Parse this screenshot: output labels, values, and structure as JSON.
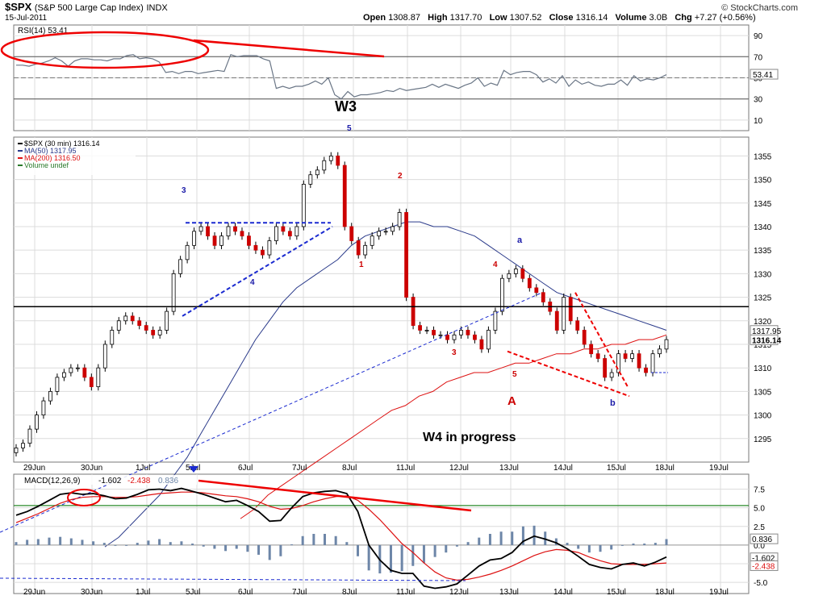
{
  "header": {
    "symbol": "$SPX",
    "name": "(S&P 500 Large Cap Index)",
    "exchange": "INDX",
    "date": "15-Jul-2011",
    "open_label": "Open",
    "open": "1308.87",
    "high_label": "High",
    "high": "1317.70",
    "low_label": "Low",
    "low": "1307.52",
    "close_label": "Close",
    "close": "1316.14",
    "volume_label": "Volume",
    "volume": "3.0B",
    "chg_label": "Chg",
    "chg": "+7.27 (+0.56%)",
    "watermark": "© StockCharts.com"
  },
  "chart_data": [
    {
      "type": "line",
      "panel": "rsi",
      "label": "RSI(14) 53.41",
      "y_ticks": [
        "90",
        "70",
        "50",
        "30",
        "10"
      ],
      "ylim": [
        0,
        100
      ],
      "last_value_label": "53.41",
      "values": [
        62,
        62,
        61,
        63,
        64,
        66,
        69,
        66,
        61,
        66,
        68,
        68,
        67,
        67,
        66,
        68,
        68,
        71,
        72,
        68,
        69,
        68,
        65,
        55,
        56,
        54,
        56,
        56,
        54,
        55,
        56,
        57,
        56,
        72,
        70,
        71,
        71,
        71,
        68,
        66,
        40,
        42,
        40,
        42,
        42,
        44,
        47,
        44,
        50,
        34,
        30,
        37,
        32,
        34,
        34,
        35,
        36,
        38,
        37,
        40,
        38,
        39,
        40,
        41,
        44,
        41,
        44,
        42,
        40,
        43,
        45,
        50,
        42,
        45,
        43,
        57,
        53,
        55,
        56,
        56,
        53,
        46,
        49,
        45,
        52,
        42,
        48,
        44,
        46,
        43,
        42,
        44,
        44,
        48,
        43,
        52,
        47,
        49,
        48,
        50,
        53
      ]
    },
    {
      "type": "line",
      "panel": "price",
      "legend": [
        "$SPX (30 min) 1316.14",
        "MA(50) 1317.95",
        "MA(200) 1316.50",
        "Volume undef"
      ],
      "y_ticks": [
        "1355",
        "1350",
        "1345",
        "1340",
        "1335",
        "1330",
        "1325",
        "1320",
        "1315",
        "1310",
        "1305",
        "1300",
        "1295"
      ],
      "ylim": [
        1290,
        1359
      ],
      "x_labels": [
        "29Jun",
        "30Jun",
        "1Jul",
        "5Jul",
        "6Jul",
        "7Jul",
        "8Jul",
        "11Jul",
        "12Jul",
        "13Jul",
        "14Jul",
        "15Jul",
        "18Jul",
        "19Jul"
      ],
      "price_labels": [
        "1317.95",
        "1316.14"
      ],
      "close": [
        1293,
        1294,
        1297,
        1300,
        1303,
        1305,
        1308,
        1309,
        1310,
        1310,
        1308,
        1306,
        1310,
        1315,
        1318,
        1320,
        1321,
        1320,
        1319,
        1318,
        1317,
        1318,
        1322,
        1330,
        1333,
        1336,
        1339,
        1340,
        1338,
        1336,
        1338,
        1340,
        1339,
        1338,
        1336,
        1335,
        1334,
        1337,
        1340,
        1339,
        1338,
        1340,
        1349,
        1351,
        1352,
        1354,
        1355,
        1353,
        1340,
        1337,
        1334,
        1336,
        1338,
        1339,
        1339,
        1340,
        1343,
        1325,
        1319,
        1318,
        1318,
        1317,
        1317,
        1316,
        1317,
        1318,
        1317,
        1316,
        1314,
        1318,
        1322,
        1329,
        1330,
        1331,
        1329,
        1327,
        1326,
        1324,
        1322,
        1318,
        1325,
        1320,
        1318,
        1315,
        1313,
        1312,
        1308,
        1309,
        1313,
        1312,
        1313,
        1310,
        1309,
        1313,
        1314,
        1316
      ],
      "ma50": [
        1272,
        1274,
        1277,
        1280,
        1283,
        1287,
        1291,
        1296,
        1301,
        1306,
        1311,
        1316,
        1320,
        1324,
        1327,
        1329,
        1331,
        1333,
        1336,
        1338,
        1339,
        1340,
        1341,
        1341,
        1340,
        1340,
        1339,
        1338,
        1336,
        1334,
        1332,
        1330,
        1328,
        1326,
        1325,
        1324,
        1323,
        1322,
        1321,
        1320,
        1319,
        1318
      ],
      "ma200": [
        1278,
        1280,
        1283,
        1285,
        1287,
        1289,
        1291,
        1293,
        1295,
        1297,
        1299,
        1301,
        1302,
        1304,
        1305,
        1307,
        1308,
        1309,
        1309,
        1310,
        1311,
        1311,
        1312,
        1313,
        1313,
        1314,
        1314,
        1315,
        1315,
        1316,
        1316,
        1317
      ],
      "annotations": [
        {
          "text": "W3",
          "color": "#000000",
          "size": 18
        },
        {
          "text": "W4 in progress",
          "color": "#000000",
          "size": 16
        },
        {
          "text": "5",
          "color": "#1a1aa8"
        },
        {
          "text": "3",
          "color": "#1a1aa8"
        },
        {
          "text": "4",
          "color": "#1a1aa8"
        },
        {
          "text": "a",
          "color": "#1a1aa8"
        },
        {
          "text": "b",
          "color": "#1a1aa8"
        },
        {
          "text": "1",
          "color": "#cc0000"
        },
        {
          "text": "2",
          "color": "#cc0000"
        },
        {
          "text": "3",
          "color": "#cc0000"
        },
        {
          "text": "4",
          "color": "#cc0000"
        },
        {
          "text": "5",
          "color": "#cc0000"
        },
        {
          "text": "A",
          "color": "#cc0000",
          "size": 15
        }
      ]
    },
    {
      "type": "line",
      "panel": "macd",
      "label_prefix": "MACD(12,26,9)",
      "label_macd": "-1.602",
      "label_signal": "-2.438",
      "label_hist": "0.836",
      "y_ticks": [
        "7.5",
        "5.0",
        "2.5",
        "0.0",
        "-2.5",
        "-5.0"
      ],
      "ylim": [
        -6.5,
        9.5
      ],
      "price_labels": [
        "0.836",
        "-1.602",
        "-2.438"
      ],
      "x_labels": [
        "29Jun",
        "30Jun",
        "1Jul",
        "5Jul",
        "6Jul",
        "7Jul",
        "8Jul",
        "11Jul",
        "12Jul",
        "13Jul",
        "14Jul",
        "15Jul",
        "18Jul",
        "19Jul"
      ],
      "macd": [
        4.0,
        4.5,
        5.2,
        6.0,
        6.8,
        7.0,
        6.8,
        6.9,
        6.6,
        6.2,
        6.3,
        6.8,
        7.4,
        7.5,
        7.3,
        7.6,
        7.2,
        6.8,
        6.3,
        5.8,
        6.0,
        5.3,
        4.5,
        3.2,
        3.3,
        5.0,
        6.5,
        7.0,
        7.2,
        7.3,
        6.9,
        4.5,
        0.0,
        -2.0,
        -3.4,
        -3.8,
        -3.8,
        -5.5,
        -5.8,
        -5.6,
        -5.2,
        -4.0,
        -2.8,
        -2.0,
        -1.8,
        -1.0,
        0.5,
        1.2,
        0.8,
        0.3,
        -0.5,
        -1.5,
        -2.6,
        -3.0,
        -3.2,
        -2.6,
        -2.4,
        -2.8,
        -2.3,
        -1.6
      ],
      "signal": [
        3.0,
        3.6,
        4.2,
        4.9,
        5.6,
        6.1,
        6.4,
        6.5,
        6.5,
        6.4,
        6.4,
        6.5,
        6.7,
        6.9,
        7.0,
        7.1,
        7.1,
        7.0,
        6.8,
        6.6,
        6.5,
        6.2,
        5.8,
        5.2,
        4.8,
        4.9,
        5.3,
        5.8,
        6.2,
        6.5,
        6.6,
        6.0,
        4.8,
        3.4,
        1.8,
        0.2,
        -1.0,
        -2.4,
        -3.6,
        -4.4,
        -4.7,
        -4.6,
        -4.3,
        -3.9,
        -3.4,
        -2.8,
        -2.1,
        -1.4,
        -0.9,
        -0.6,
        -0.7,
        -1.0,
        -1.6,
        -2.1,
        -2.5,
        -2.6,
        -2.6,
        -2.6,
        -2.5,
        -2.4
      ],
      "histogram": [
        0.4,
        0.7,
        0.8,
        1.0,
        1.1,
        0.9,
        0.7,
        0.5,
        0.3,
        -0.1,
        -0.1,
        0.3,
        0.6,
        0.8,
        0.4,
        0.5,
        0.2,
        -0.2,
        -0.5,
        -0.8,
        -0.5,
        -0.9,
        -1.3,
        -2.0,
        -1.5,
        0.1,
        1.2,
        1.5,
        1.5,
        1.2,
        0.4,
        -1.5,
        -3.4,
        -3.8,
        -3.7,
        -3.5,
        -2.8,
        -2.4,
        -1.6,
        -1.0,
        -0.2,
        0.4,
        1.0,
        1.5,
        1.8,
        1.8,
        2.5,
        2.6,
        1.8,
        0.9,
        0.3,
        -0.5,
        -1.0,
        -0.9,
        -0.6,
        -0.1,
        0.2,
        0.2,
        0.3,
        0.8
      ]
    }
  ]
}
